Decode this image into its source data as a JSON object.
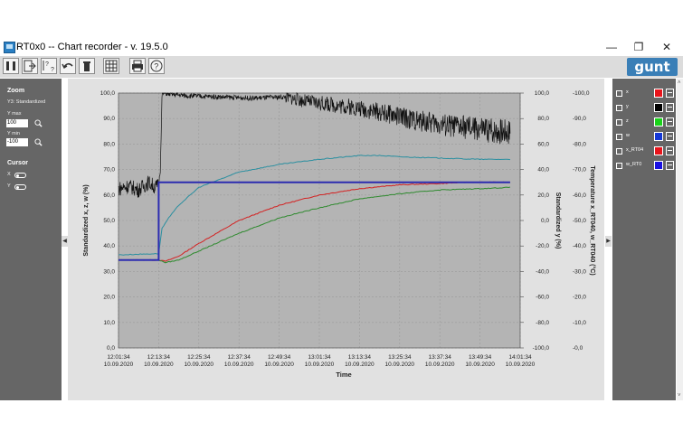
{
  "window": {
    "title": "RT0x0  --  Chart recorder - v. 19.5.0",
    "minimize": "—",
    "restore": "❐",
    "close": "✕"
  },
  "toolbar": {
    "buttons": [
      "pause-icon",
      "export-icon",
      "help-cursor-icon",
      "undo-icon",
      "trash-icon",
      "grid-icon",
      "print-icon",
      "help-icon"
    ],
    "logo": "gunt"
  },
  "left_panel": {
    "zoom_title": "Zoom",
    "y3_label": "Y3: Standardized",
    "ymax_label": "Y max",
    "ymax_value": "100",
    "ymin_label": "Y min",
    "ymin_value": "-100",
    "cursor_title": "Cursor",
    "cursor_x": "X",
    "cursor_y": "Y"
  },
  "legend": [
    {
      "label": "x",
      "color": "#e8141b"
    },
    {
      "label": "y",
      "color": "#000000"
    },
    {
      "label": "z",
      "color": "#1ad21a"
    },
    {
      "label": "w",
      "color": "#1538d6"
    },
    {
      "label": "x_RT04",
      "color": "#e8141b"
    },
    {
      "label": "w_RT0",
      "color": "#1a10e0"
    }
  ],
  "chart_data": {
    "type": "line",
    "xlabel": "Time",
    "ylabel_left": "Standardized   x, z, w    (%)",
    "ylabel_mid": "Standardized   y    (%)",
    "ylabel_right": "Temperature   x_RT040, w_RT040   (°C)",
    "ylim_left": [
      0,
      100
    ],
    "ylim_mid": [
      -100,
      100
    ],
    "ylim_right": [
      -100,
      0
    ],
    "yticks_left": [
      "100,0",
      "90,0",
      "80,0",
      "70,0",
      "60,0",
      "50,0",
      "40,0",
      "30,0",
      "20,0",
      "10,0",
      "0,0"
    ],
    "yticks_mid": [
      "100,0",
      "80,0",
      "60,0",
      "40,0",
      "20,0",
      "0,0",
      "-20,0",
      "-40,0",
      "-60,0",
      "-80,0",
      "-100,0"
    ],
    "yticks_right": [
      "-100,0",
      "-90,0",
      "-80,0",
      "-70,0",
      "-60,0",
      "-50,0",
      "-40,0",
      "-30,0",
      "-20,0",
      "-10,0",
      "-0,0"
    ],
    "xticks": [
      [
        "12:01:34",
        "10.09.2020"
      ],
      [
        "12:13:34",
        "10.09.2020"
      ],
      [
        "12:25:34",
        "10.09.2020"
      ],
      [
        "12:37:34",
        "10.09.2020"
      ],
      [
        "12:49:34",
        "10.09.2020"
      ],
      [
        "13:01:34",
        "10.09.2020"
      ],
      [
        "13:13:34",
        "10.09.2020"
      ],
      [
        "13:25:34",
        "10.09.2020"
      ],
      [
        "13:37:34",
        "10.09.2020"
      ],
      [
        "13:49:34",
        "10.09.2020"
      ],
      [
        "14:01:34",
        "10.09.2020"
      ]
    ],
    "x_minutes": [
      0,
      12,
      24,
      36,
      48,
      60,
      72,
      84,
      96,
      108,
      120
    ],
    "series": [
      {
        "name": "x",
        "color": "#d42020",
        "axis": "left",
        "x": [
          0,
          12,
          14,
          18,
          24,
          36,
          48,
          60,
          72,
          84,
          96,
          104,
          108,
          117
        ],
        "y": [
          34.5,
          34.5,
          34,
          36,
          41,
          50,
          56,
          60,
          62.5,
          64,
          64.5,
          65,
          65,
          65
        ]
      },
      {
        "name": "y",
        "color": "#111111",
        "axis": "mid",
        "x": [
          0,
          3,
          6,
          9,
          11,
          12,
          12.5,
          13,
          20,
          30,
          40,
          50,
          55,
          60,
          70,
          80,
          90,
          100,
          110,
          117
        ],
        "y": [
          25,
          27,
          24,
          30,
          26,
          28,
          40,
          100,
          98,
          97,
          96,
          97,
          94,
          92,
          89,
          84,
          78,
          74,
          71,
          70
        ]
      },
      {
        "name": "z",
        "color": "#2e8a2e",
        "axis": "left",
        "x": [
          0,
          12,
          14,
          18,
          24,
          36,
          48,
          60,
          72,
          84,
          96,
          108,
          117
        ],
        "y": [
          34.5,
          34.5,
          33.5,
          34.5,
          38,
          45,
          51,
          55,
          58.5,
          60.5,
          62,
          62.5,
          63
        ]
      },
      {
        "name": "w",
        "color": "#2a8fa0",
        "axis": "left",
        "x": [
          0,
          12,
          13,
          15,
          18,
          24,
          30,
          36,
          48,
          60,
          72,
          78,
          84,
          96,
          108,
          117
        ],
        "y": [
          36.5,
          37,
          47,
          51,
          56,
          63,
          66,
          69,
          72,
          74,
          75.5,
          75.5,
          75,
          74.5,
          74,
          74
        ]
      },
      {
        "name": "x_RT04",
        "color": "#2c2cb0",
        "axis": "left",
        "x": [
          0,
          12,
          12.01,
          117
        ],
        "y": [
          34.5,
          34.5,
          65,
          65
        ]
      }
    ]
  }
}
